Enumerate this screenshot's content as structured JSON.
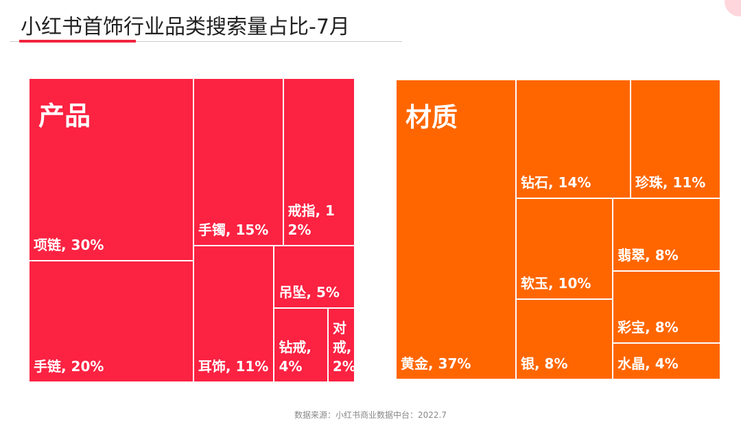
{
  "chart_data": {
    "type": "treemap",
    "title": "小红书首饰行业品类搜索量占比-7月",
    "source": "数据来源：小红书商业数据中台：2022.7",
    "series": [
      {
        "name": "产品",
        "color": "#fb2242",
        "labels": [
          "项链, 30%",
          "手链, 20%",
          "手镯, 15%",
          "戒指, 12%",
          "耳饰, 11%",
          "吊坠, 5%",
          "钻戒, 4%",
          "对戒, 2%"
        ],
        "values": [
          30,
          20,
          15,
          12,
          11,
          5,
          4,
          2
        ]
      },
      {
        "name": "材质",
        "color": "#ff6600",
        "labels": [
          "黄金, 37%",
          "钻石, 14%",
          "珍珠, 11%",
          "软玉, 10%",
          "银, 8%",
          "翡翠, 8%",
          "彩宝, 8%",
          "水晶, 4%"
        ],
        "values": [
          37,
          14,
          11,
          10,
          8,
          8,
          8,
          4
        ]
      }
    ]
  }
}
